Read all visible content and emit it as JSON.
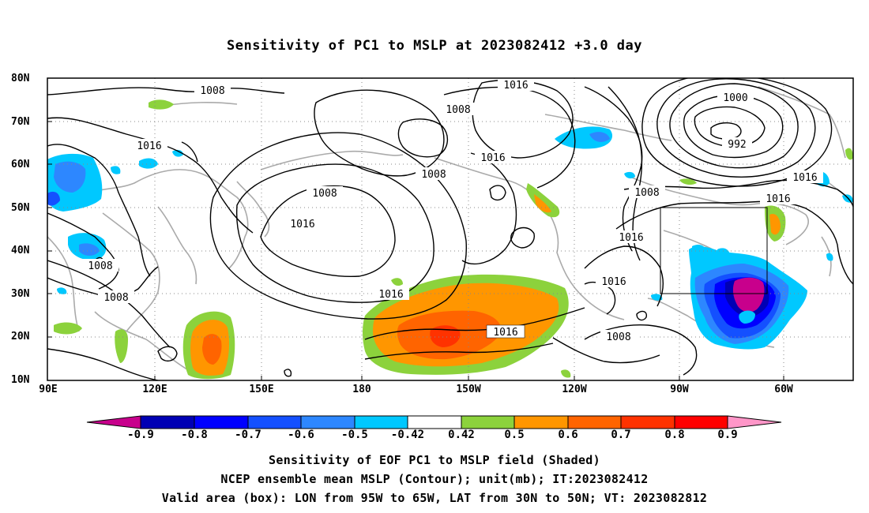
{
  "title": "Sensitivity of PC1 to MSLP at 2023082412 +3.0 day",
  "lat_labels": [
    "80N",
    "70N",
    "60N",
    "50N",
    "40N",
    "30N",
    "20N",
    "10N"
  ],
  "lon_labels": [
    "90E",
    "120E",
    "150E",
    "180",
    "150W",
    "120W",
    "90W",
    "60W"
  ],
  "contour_labels": [
    "1008",
    "1016",
    "1008",
    "1016",
    "1008",
    "1000",
    "992",
    "1016",
    "1008",
    "1016",
    "1016",
    "1016",
    "1016",
    "1008",
    "1008",
    "1008",
    "1016",
    "1008",
    "1016",
    "1016"
  ],
  "valid_box": {
    "lon_min": "95W",
    "lon_max": "65W",
    "lat_min": "30N",
    "lat_max": "50N"
  },
  "colorbar": {
    "labels": [
      "-0.9",
      "-0.8",
      "-0.7",
      "-0.6",
      "-0.5",
      "-0.42",
      "0.42",
      "0.5",
      "0.6",
      "0.7",
      "0.8",
      "0.9"
    ],
    "colors": [
      "#c8008c",
      "#0000b4",
      "#0000ff",
      "#1450ff",
      "#2d87ff",
      "#50b4ff",
      "#00c8ff",
      "#ffffff",
      "#8cd23c",
      "#ff9600",
      "#ff6400",
      "#ff3200",
      "#ff0000",
      "#ff96c8"
    ]
  },
  "caption": {
    "line1": "Sensitivity of EOF PC1 to MSLP field (Shaded)",
    "line2": "NCEP ensemble mean MSLP (Contour); unit(mb); IT:2023082412",
    "line3": "Valid area (box): LON from 95W to 65W, LAT from 30N to 50N; VT: 2023082812"
  }
}
